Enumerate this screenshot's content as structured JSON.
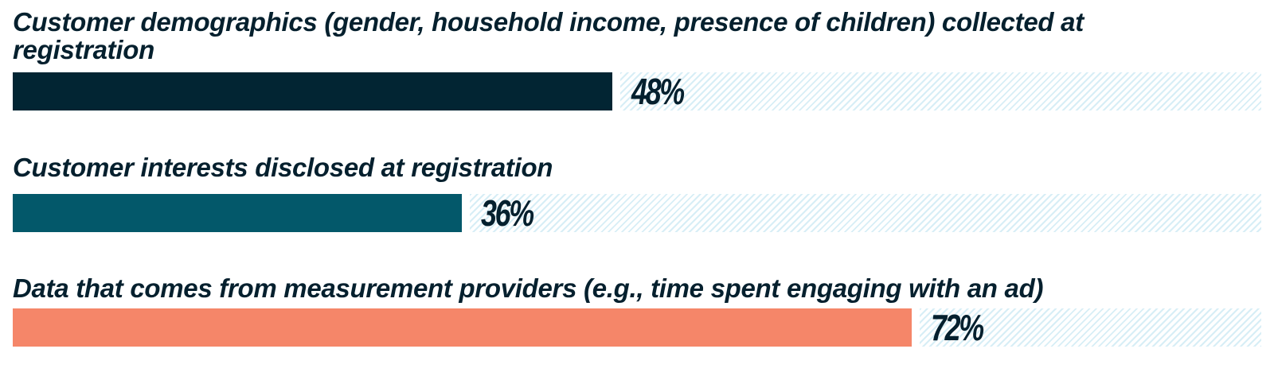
{
  "chart_data": {
    "type": "bar",
    "orientation": "horizontal",
    "title": "",
    "xlabel": "",
    "ylabel": "",
    "xlim": [
      0,
      100
    ],
    "grid": false,
    "legend": "none",
    "categories": [
      "Customer demographics (gender, household income, presence of children) collected at registration",
      "Customer interests disclosed at registration",
      "Data that comes from measurement providers (e.g., time spent engaging with an ad)"
    ],
    "values": [
      48,
      36,
      72
    ],
    "value_labels": [
      "48%",
      "36%",
      "72%"
    ],
    "colors": [
      "#022533",
      "#03586a",
      "#f58669"
    ],
    "remainder_pattern_color": "#d7eef6",
    "text_color": "#05202e"
  }
}
